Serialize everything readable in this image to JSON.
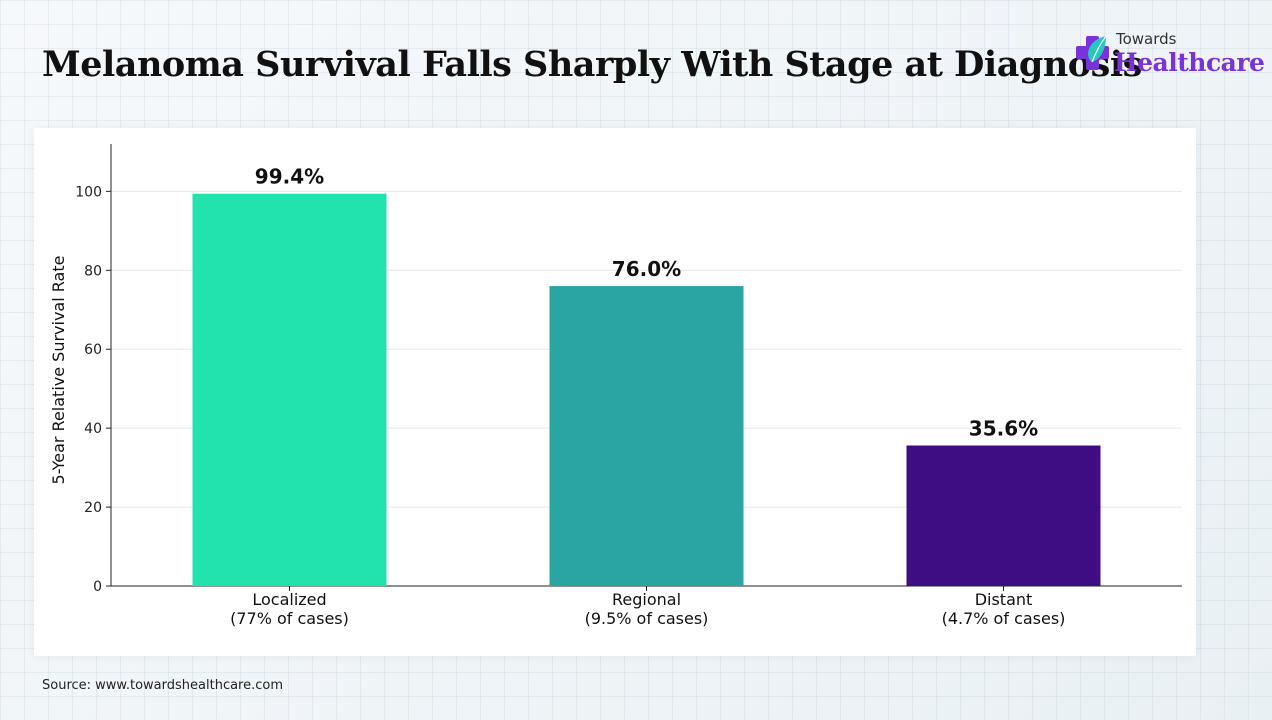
{
  "header": {
    "title": "Melanoma Survival Falls Sharply With Stage at Diagnosis"
  },
  "logo": {
    "line1": "Towards",
    "line2": "Healthcare",
    "icon": "medical-cross-leaf-icon"
  },
  "footer": {
    "source": "Source: www.towardshealthcare.com"
  },
  "chart_data": {
    "type": "bar",
    "categories": [
      [
        "Localized",
        "(77% of cases)"
      ],
      [
        "Regional",
        "(9.5% of cases)"
      ],
      [
        "Distant",
        "(4.7% of cases)"
      ]
    ],
    "values": [
      99.4,
      76.0,
      35.6
    ],
    "data_labels": [
      "99.4%",
      "76.0%",
      "35.6%"
    ],
    "colors": [
      "#22e3ae",
      "#2aa5a3",
      "#3f0d83"
    ],
    "ylabel": "5-Year Relative Survival Rate",
    "xlabel": "",
    "ylim": [
      0,
      112
    ],
    "yticks": [
      0,
      20,
      40,
      60,
      80,
      100
    ],
    "grid": true
  }
}
